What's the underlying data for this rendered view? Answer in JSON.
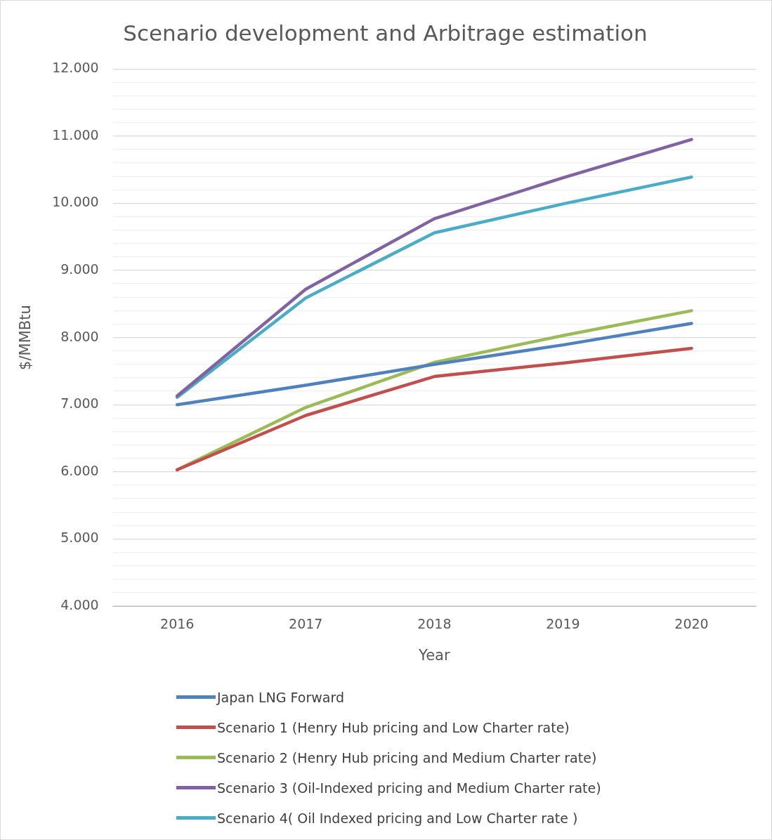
{
  "chart_data": {
    "type": "line",
    "title": "Scenario development and Arbitrage estimation",
    "xlabel": "Year",
    "ylabel": "$/MMBtu",
    "categories": [
      "2016",
      "2017",
      "2018",
      "2019",
      "2020"
    ],
    "series": [
      {
        "name": "Japan LNG Forward",
        "color": "#4f81bd",
        "values": [
          7.0,
          7.29,
          7.6,
          7.89,
          8.21
        ]
      },
      {
        "name": "Scenario 1 (Henry Hub pricing and Low Charter rate)",
        "color": "#c0504d",
        "values": [
          6.03,
          6.84,
          7.42,
          7.62,
          7.84
        ]
      },
      {
        "name": "Scenario 2 (Henry Hub pricing and Medium Charter rate)",
        "color": "#9bbb59",
        "values": [
          6.03,
          6.96,
          7.63,
          8.03,
          8.4
        ]
      },
      {
        "name": "Scenario 3 (Oil-Indexed pricing and Medium Charter rate)",
        "color": "#8064a2",
        "values": [
          7.13,
          8.72,
          9.77,
          10.38,
          10.95
        ]
      },
      {
        "name": "Scenario 4( Oil Indexed pricing and Low Charter rate )",
        "color": "#4bacc6",
        "values": [
          7.11,
          8.59,
          9.56,
          9.99,
          10.39
        ]
      }
    ],
    "ylim": [
      4,
      12
    ],
    "yticks": [
      {
        "value": 4,
        "label": "4.000"
      },
      {
        "value": 4.2,
        "label": null
      },
      {
        "value": 4.4,
        "label": null
      },
      {
        "value": 4.6,
        "label": null
      },
      {
        "value": 4.8,
        "label": null
      },
      {
        "value": 5,
        "label": "5.000"
      },
      {
        "value": 5.2,
        "label": null
      },
      {
        "value": 5.4,
        "label": null
      },
      {
        "value": 5.6,
        "label": null
      },
      {
        "value": 5.8,
        "label": null
      },
      {
        "value": 6,
        "label": "6.000"
      },
      {
        "value": 6.2,
        "label": null
      },
      {
        "value": 6.4,
        "label": null
      },
      {
        "value": 6.6,
        "label": null
      },
      {
        "value": 6.8,
        "label": null
      },
      {
        "value": 7,
        "label": "7.000"
      },
      {
        "value": 7.2,
        "label": null
      },
      {
        "value": 7.4,
        "label": null
      },
      {
        "value": 7.6,
        "label": null
      },
      {
        "value": 7.8,
        "label": null
      },
      {
        "value": 8,
        "label": "8.000"
      },
      {
        "value": 8.2,
        "label": null
      },
      {
        "value": 8.4,
        "label": null
      },
      {
        "value": 8.6,
        "label": null
      },
      {
        "value": 8.8,
        "label": null
      },
      {
        "value": 9,
        "label": "9.000"
      },
      {
        "value": 9.2,
        "label": null
      },
      {
        "value": 9.4,
        "label": null
      },
      {
        "value": 9.6,
        "label": null
      },
      {
        "value": 9.8,
        "label": null
      },
      {
        "value": 10,
        "label": "10.000"
      },
      {
        "value": 10.2,
        "label": null
      },
      {
        "value": 10.4,
        "label": null
      },
      {
        "value": 10.6,
        "label": null
      },
      {
        "value": 10.8,
        "label": null
      },
      {
        "value": 11,
        "label": "11.000"
      },
      {
        "value": 11.2,
        "label": null
      },
      {
        "value": 11.4,
        "label": null
      },
      {
        "value": 11.6,
        "label": null
      },
      {
        "value": 11.8,
        "label": null
      },
      {
        "value": 12,
        "label": "12.000"
      }
    ],
    "grid": "y",
    "legend": "bottom",
    "marker": "none",
    "line_style": "solid"
  }
}
